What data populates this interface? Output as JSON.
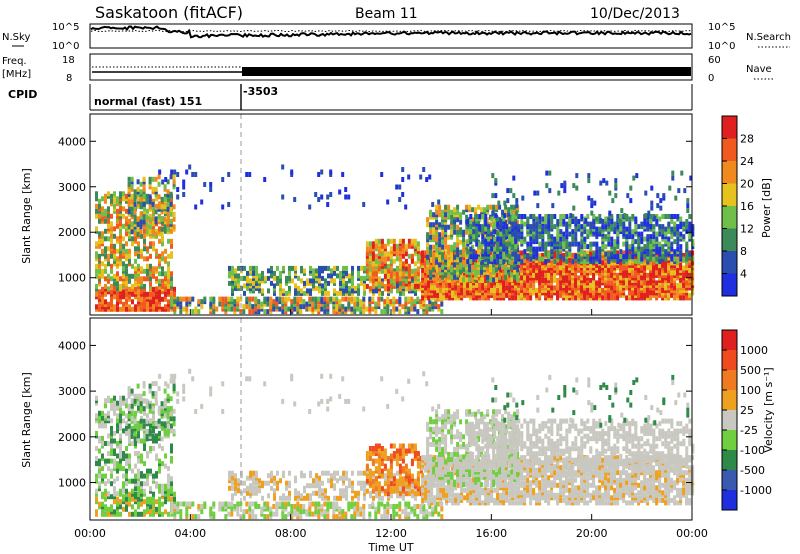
{
  "header": {
    "station": "Saskatoon (fitACF)",
    "beam": "Beam 11",
    "date": "10/Dec/2013"
  },
  "top_panels": {
    "sky_label": "N.Sky",
    "sky_ticks": [
      "10^5",
      "10^0"
    ],
    "search_label": "N.Search",
    "search_ticks": [
      "10^5",
      "10^0"
    ],
    "freq_label": "Freq.",
    "freq_unit": "[MHz]",
    "freq_ticks": [
      "18",
      "8"
    ],
    "nave_label": "Nave",
    "nave_ticks": [
      "60",
      "0"
    ],
    "cpid_label": "CPID",
    "cpid_mode1": "normal (fast) 151",
    "cpid_mode2": "-3503"
  },
  "colors": {
    "power": [
      "#1f2fe0",
      "#2a4db0",
      "#3a8a5a",
      "#6fbf4a",
      "#e6c21f",
      "#f08a1f",
      "#f05a1f",
      "#e01f1f"
    ],
    "velocity": [
      "#1f2fe0",
      "#3a5ab0",
      "#2f8a4a",
      "#6fcf3f",
      "#c8c8c0",
      "#f0a01f",
      "#f07a1f",
      "#f04a1f",
      "#e01f1f"
    ]
  },
  "chart_data": [
    {
      "type": "heatmap",
      "name": "power",
      "xlabel": "Time UT",
      "ylabel": "Slant Range [km]",
      "xlim": [
        0,
        24
      ],
      "ylim": [
        180,
        4600
      ],
      "x_ticks": [
        "00:00",
        "04:00",
        "08:00",
        "12:00",
        "16:00",
        "20:00",
        "00:00"
      ],
      "y_ticks": [
        1000,
        2000,
        3000,
        4000
      ],
      "colorbar_label": "Power [dB]",
      "colorbar_ticks": [
        "4",
        "8",
        "12",
        "16",
        "20",
        "24",
        "28"
      ]
    },
    {
      "type": "heatmap",
      "name": "velocity",
      "xlabel": "Time UT",
      "ylabel": "Slant Range [km]",
      "xlim": [
        0,
        24
      ],
      "ylim": [
        180,
        4600
      ],
      "x_ticks": [
        "00:00",
        "04:00",
        "08:00",
        "12:00",
        "16:00",
        "20:00",
        "00:00"
      ],
      "y_ticks": [
        1000,
        2000,
        3000,
        4000
      ],
      "colorbar_label": "Velocity [m s⁻¹]",
      "colorbar_ticks": [
        "1000",
        "500",
        "100",
        "25",
        "-25",
        "-100",
        "-500",
        "-1000"
      ]
    }
  ]
}
